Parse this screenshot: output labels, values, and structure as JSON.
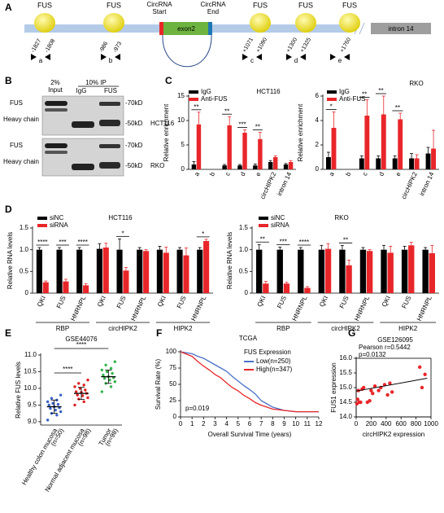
{
  "panel_labels": [
    "A",
    "B",
    "C",
    "D",
    "E",
    "F",
    "G"
  ],
  "figure_a": {
    "fus": [
      "FUS",
      "FUS",
      "FUS",
      "FUS",
      "FUS"
    ],
    "circ_start": [
      "CircRNA",
      "Start"
    ],
    "circ_end": [
      "CircRNA",
      "End"
    ],
    "exon": "exon2",
    "intron": "intron 14",
    "positions": [
      "-1827",
      "-1808",
      "-986",
      "-973",
      "+1071",
      "+1090",
      "+1300",
      "+1325",
      "+1760"
    ],
    "primers": [
      "a",
      "b",
      "c",
      "d",
      "e"
    ]
  },
  "figure_b": {
    "input_pct": "2%",
    "input": "Input",
    "ip": "10% IP",
    "lanes": [
      "IgG",
      "FUS"
    ],
    "blots": [
      {
        "cell_line": "HCT116",
        "bands": [
          "FUS",
          "Heavy chain"
        ],
        "markers": [
          "-70kD",
          "-50kD"
        ]
      },
      {
        "cell_line": "RKO",
        "bands": [
          "FUS",
          "Heavy chain"
        ],
        "markers": [
          "-70kD",
          "-50kD"
        ]
      }
    ]
  },
  "chart_data": [
    {
      "type": "bar",
      "title": "HCT116",
      "y_label": "Relative enrichment",
      "categories": [
        "a",
        "b",
        "c",
        "d",
        "e",
        "circHIPK2",
        "intron 14"
      ],
      "ylim": [
        0,
        15
      ],
      "yticks": [
        0,
        5,
        10,
        15
      ],
      "series": [
        {
          "name": "IgG",
          "color": "#000000",
          "values": [
            1,
            0,
            0.8,
            0.8,
            0.8,
            1.5,
            1.0
          ],
          "errors": [
            0.6,
            0,
            0.2,
            0.2,
            0.3,
            0.3,
            0.2
          ]
        },
        {
          "name": "Anti-FUS",
          "color": "#e8262a",
          "values": [
            9.2,
            0,
            9,
            7.5,
            6.2,
            2.5,
            1.5
          ],
          "errors": [
            2.5,
            0,
            1.8,
            0.6,
            1.4,
            0.3,
            0.3
          ]
        }
      ],
      "significance": [
        "**",
        null,
        "**",
        "***",
        "**",
        null,
        null
      ]
    },
    {
      "type": "bar",
      "title": "RKO",
      "y_label": "Relative enrichment",
      "categories": [
        "a",
        "b",
        "c",
        "d",
        "e",
        "circHIPK2",
        "intron 14"
      ],
      "ylim": [
        0,
        6
      ],
      "yticks": [
        0,
        2,
        4,
        6
      ],
      "series": [
        {
          "name": "IgG",
          "color": "#000000",
          "values": [
            1,
            0,
            0.9,
            0.9,
            0.9,
            0.9,
            1.3
          ],
          "errors": [
            0.4,
            0,
            0.2,
            0.2,
            0.2,
            0.4,
            0.5
          ]
        },
        {
          "name": "Anti-FUS",
          "color": "#e8262a",
          "values": [
            3.4,
            0,
            4.4,
            4.5,
            4.1,
            0.9,
            1.7
          ],
          "errors": [
            1.3,
            0,
            1.3,
            1.5,
            0.5,
            0.3,
            1.5
          ]
        }
      ],
      "significance": [
        "*",
        null,
        "**",
        "**",
        "**",
        null,
        null
      ]
    },
    {
      "type": "bar",
      "title": "HCT116",
      "y_label": "Relative RNA levels",
      "categories": [
        "QKI",
        "FUS",
        "HNRNPL",
        "QKI",
        "FUS",
        "HNRNPL",
        "QKI",
        "FUS",
        "HNRNPL"
      ],
      "groups": [
        "RBP",
        "circHIPK2",
        "HIPK2"
      ],
      "ylim": [
        0,
        1.5
      ],
      "yticks": [
        0,
        0.5,
        {
          "value": 1,
          "label": "1.0"
        },
        1.5
      ],
      "series": [
        {
          "name": "siNC",
          "color": "#000000",
          "values": [
            1,
            1,
            1,
            1.02,
            1.0,
            1.0,
            1,
            1,
            1
          ],
          "errors": [
            0.05,
            0.05,
            0.05,
            0.12,
            0.25,
            0.05,
            0.08,
            0.05,
            0.05
          ]
        },
        {
          "name": "siRNA",
          "color": "#e8262a",
          "values": [
            0.25,
            0.27,
            0.18,
            1.05,
            0.52,
            0.97,
            0.93,
            0.87,
            1.2
          ],
          "errors": [
            0.03,
            0.05,
            0.04,
            0.1,
            0.07,
            0.03,
            0.13,
            0.17,
            0.04
          ]
        }
      ],
      "significance": [
        "****",
        "***",
        "****",
        null,
        "*",
        null,
        null,
        null,
        "*"
      ]
    },
    {
      "type": "bar",
      "title": "RKO",
      "y_label": "Relative RNA levels",
      "categories": [
        "QKI",
        "FUS",
        "HNRNPL",
        "QKI",
        "FUS",
        "HNRNPL",
        "QKI",
        "FUS",
        "HNRNPL"
      ],
      "groups": [
        "RBP",
        "circHIPK2",
        "HIPK2"
      ],
      "ylim": [
        0,
        1.5
      ],
      "yticks": [
        0,
        0.5,
        {
          "value": 1,
          "label": "1.0"
        },
        1.5
      ],
      "series": [
        {
          "name": "siNC",
          "color": "#000000",
          "values": [
            1,
            1,
            1,
            1,
            1,
            1,
            1,
            1,
            1
          ],
          "errors": [
            0.12,
            0.06,
            0.05,
            0.1,
            0.1,
            0.05,
            0.1,
            0.08,
            0.05
          ]
        },
        {
          "name": "siRNA",
          "color": "#e8262a",
          "values": [
            0.22,
            0.22,
            0.12,
            1.02,
            0.64,
            0.97,
            0.93,
            1.1,
            0.92
          ],
          "errors": [
            0.05,
            0.03,
            0.03,
            0.12,
            0.12,
            0.03,
            0.15,
            0.07,
            0.18
          ]
        }
      ],
      "significance": [
        "**",
        "***",
        "****",
        null,
        "**",
        null,
        null,
        null,
        null
      ]
    },
    {
      "type": "dot",
      "title": "GSE44076",
      "y_label": "Relative FUS levels",
      "ylim": [
        8.9,
        11.0
      ],
      "yticks": [
        {
          "value": 9,
          "label": "9.0"
        },
        9.5,
        {
          "value": 10,
          "label": "10.0"
        },
        10.5,
        {
          "value": 11,
          "label": "11.0"
        }
      ],
      "groups": [
        {
          "label": [
            "Healthy colon mucosa",
            "(n=50)"
          ],
          "color": "#3a63c8",
          "mean": 9.45,
          "sd": 0.2,
          "values": [
            9.05,
            9.2,
            9.25,
            9.3,
            9.35,
            9.4,
            9.42,
            9.45,
            9.5,
            9.52,
            9.55,
            9.6,
            9.65,
            9.7,
            9.8
          ]
        },
        {
          "label": [
            "Normal adjacent mucosa",
            "(n=98)"
          ],
          "color": "#e02020",
          "mean": 9.85,
          "sd": 0.18,
          "values": [
            9.5,
            9.6,
            9.68,
            9.72,
            9.78,
            9.8,
            9.85,
            9.88,
            9.9,
            9.95,
            10.0,
            10.05,
            10.1,
            10.15,
            10.25
          ]
        },
        {
          "label": [
            "Tumor",
            "(n=98)"
          ],
          "color": "#33b34a",
          "mean": 10.35,
          "sd": 0.2,
          "values": [
            9.9,
            10.05,
            10.15,
            10.2,
            10.25,
            10.3,
            10.32,
            10.35,
            10.4,
            10.45,
            10.5,
            10.55,
            10.6,
            10.7,
            10.8
          ]
        }
      ],
      "significance": [
        "****",
        "****"
      ]
    },
    {
      "type": "line",
      "title": "TCGA",
      "x_label": "Overall Survival Time (years)",
      "y_label": "Survival  Rate (%)",
      "legend_title": "FUS Expression",
      "annotation": "p=0.019",
      "xlim": [
        0,
        12
      ],
      "xticks": [
        0,
        1,
        2,
        3,
        4,
        5,
        6,
        7,
        8,
        9,
        10,
        11,
        12
      ],
      "ylim": [
        0,
        100
      ],
      "yticks": [
        0,
        25,
        50,
        75,
        100
      ],
      "series": [
        {
          "name": "Low(n=250)",
          "color": "#4a72c8",
          "x": [
            0,
            1,
            1.5,
            2,
            2.5,
            3,
            3.5,
            4,
            4.5,
            5,
            5.5,
            6,
            6.5,
            7,
            8,
            9,
            10,
            11,
            12
          ],
          "values": [
            100,
            97,
            93,
            90,
            85,
            80,
            75,
            70,
            62,
            55,
            48,
            42,
            35,
            25,
            15,
            10,
            8,
            8,
            8
          ]
        },
        {
          "name": "High(n=347)",
          "color": "#e8262a",
          "x": [
            0,
            1,
            1.5,
            2,
            2.5,
            3,
            3.5,
            4,
            4.5,
            5,
            5.5,
            6,
            6.5,
            7,
            8,
            9,
            10,
            11,
            12
          ],
          "values": [
            100,
            93,
            85,
            78,
            72,
            65,
            60,
            52,
            45,
            40,
            33,
            28,
            22,
            18,
            12,
            10,
            8,
            8,
            8
          ]
        }
      ]
    },
    {
      "type": "scatter",
      "title": "GSE126095",
      "x_label": "circHIPK2 expression",
      "y_label": "FUS1 expression",
      "annotations": [
        "Pearson r=0.5442",
        "p=0.0132"
      ],
      "color": "#e8262a",
      "xlim": [
        0,
        1000
      ],
      "xticks": [
        0,
        200,
        400,
        600,
        800,
        1000
      ],
      "ylim": [
        14,
        16
      ],
      "yticks": [
        {
          "value": 14,
          "label": "14.0"
        },
        14.5,
        {
          "value": 15,
          "label": "15.0"
        },
        15.5,
        {
          "value": 16,
          "label": "16.0"
        }
      ],
      "x": [
        10,
        20,
        30,
        40,
        60,
        80,
        100,
        150,
        180,
        200,
        220,
        250,
        300,
        330,
        380,
        420,
        450,
        480,
        850,
        880,
        920
      ],
      "values": [
        14.45,
        14.6,
        14.9,
        14.5,
        14.5,
        14.95,
        15.0,
        14.5,
        14.55,
        14.9,
        14.8,
        15.05,
        14.9,
        15.0,
        15.1,
        14.75,
        15.15,
        14.85,
        15.7,
        15.0,
        15.45
      ],
      "trend_line": {
        "x": [
          0,
          950
        ],
        "y": [
          14.88,
          15.32
        ]
      }
    }
  ]
}
